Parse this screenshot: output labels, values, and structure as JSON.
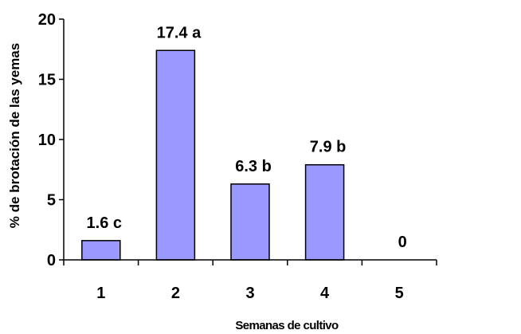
{
  "chart_data": {
    "type": "bar",
    "categories": [
      "1",
      "2",
      "3",
      "4",
      "5"
    ],
    "values": [
      1.6,
      17.4,
      6.3,
      7.9,
      0
    ],
    "data_labels": [
      "1.6 c",
      "17.4 a",
      "6.3 b",
      "7.9 b",
      "0"
    ],
    "title": "",
    "xlabel": "Semanas de cultivo",
    "ylabel": "% de brotación de las yemas",
    "ylim": [
      0,
      20
    ],
    "yticks": [
      0,
      5,
      10,
      15,
      20
    ],
    "grid": false,
    "bar_color": "#9999ff"
  }
}
